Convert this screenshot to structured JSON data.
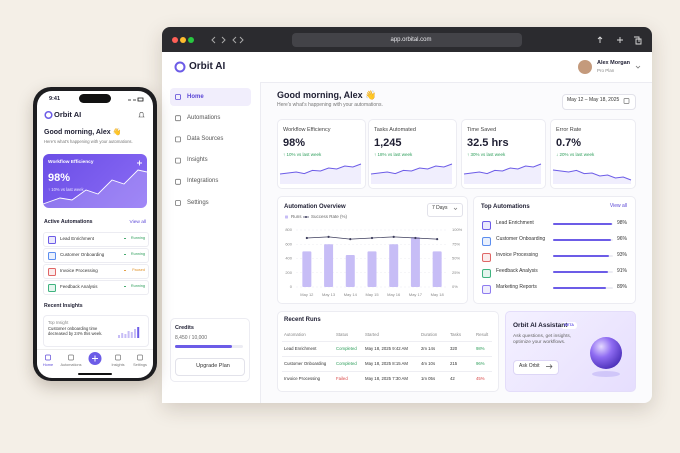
{
  "browser": {
    "url": "app.orbital.com"
  },
  "app": {
    "brand": "Orbit AI",
    "user": {
      "name": "Alex Morgan",
      "plan": "Pro Plan"
    },
    "nav": [
      "Home",
      "Automations",
      "Data Sources",
      "Insights",
      "Integrations",
      "Settings"
    ],
    "credits": {
      "title": "Credits",
      "label": "8,450 / 10,000",
      "used": 8450,
      "total": 10000,
      "button": "Upgrade Plan"
    },
    "greeting": "Good morning, Alex 👋",
    "subtitle": "Here's what's happening with your automations.",
    "date_range": "May 12 – May 18, 2025",
    "kpis": [
      {
        "title": "Workflow Efficiency",
        "value": "98%",
        "delta": "↑ 10% vs last week",
        "color": "#2e9e5b"
      },
      {
        "title": "Tasks Automated",
        "value": "1,245",
        "delta": "↑ 18% vs last week",
        "color": "#2e9e5b"
      },
      {
        "title": "Time Saved",
        "value": "32.5 hrs",
        "delta": "↑ 30% vs last week",
        "color": "#2e9e5b"
      },
      {
        "title": "Error Rate",
        "value": "0.7%",
        "delta": "↓ 20% vs last week",
        "color": "#2e9e5b"
      }
    ],
    "top_automations": {
      "title": "Top Automations",
      "link": "View all",
      "xlim": [
        0,
        100
      ],
      "color": "#6c5ce7",
      "items": [
        {
          "name": "Lead Enrichment",
          "value": 98,
          "label": "98%"
        },
        {
          "name": "Customer Onboarding",
          "value": 96,
          "label": "96%"
        },
        {
          "name": "Invoice Processing",
          "value": 93,
          "label": "93%"
        },
        {
          "name": "Feedback Analysis",
          "value": 91,
          "label": "91%"
        },
        {
          "name": "Marketing Reports",
          "value": 89,
          "label": "89%"
        }
      ]
    },
    "recent_runs": {
      "title": "Recent Runs",
      "columns": [
        "Automation",
        "Status",
        "Started",
        "Duration",
        "Tasks",
        "Result"
      ],
      "rows": [
        {
          "cells": [
            "Lead Enrichment",
            "Completed",
            "May 18, 2025 9:42 AM",
            "2m 14s",
            "320",
            "98%"
          ],
          "color": "#2e9e5b"
        },
        {
          "cells": [
            "Customer Onboarding",
            "Completed",
            "May 18, 2025 8:15 AM",
            "4m 10s",
            "215",
            "96%"
          ],
          "color": "#2e9e5b"
        },
        {
          "cells": [
            "Invoice Processing",
            "Failed",
            "May 18, 2025 7:30 AM",
            "1m 05s",
            "42",
            "45%"
          ],
          "color": "#d94848"
        }
      ]
    },
    "assistant": {
      "title": "Orbit AI Assistant",
      "badge": "BETA",
      "text": "Ask questions, get insights, optimize your workflows.",
      "button": "Ask Orbit"
    }
  },
  "chart_data": {
    "type": "bar",
    "title": "Automation Overview",
    "range": "7 Days",
    "categories": [
      "May 12",
      "May 13",
      "May 14",
      "May 15",
      "May 16",
      "May 17",
      "May 18"
    ],
    "series": [
      {
        "name": "Runs",
        "color": "#c7bdf6",
        "values": [
          500,
          600,
          450,
          500,
          600,
          700,
          500
        ]
      },
      {
        "name": "Success Rate (%)",
        "color": "#3d3d5c",
        "axis": "y2",
        "values": [
          86,
          88,
          84,
          86,
          88,
          86,
          84
        ]
      }
    ],
    "ylim": [
      0,
      800
    ],
    "yticks": [
      0,
      200,
      400,
      600,
      800
    ],
    "y2lim": [
      0,
      100
    ],
    "y2ticks": [
      {
        "value": 0,
        "label": "0%"
      },
      {
        "value": 25,
        "label": "25%"
      },
      {
        "value": 50,
        "label": "50%"
      },
      {
        "value": 75,
        "label": "75%"
      },
      {
        "value": 100,
        "label": "100%"
      }
    ],
    "grid": true
  },
  "phone": {
    "time": "9:41",
    "brand": "Orbit AI",
    "greeting": "Good morning, Alex 👋",
    "subtitle": "Here's what's happening with your automations.",
    "card": {
      "title": "Workflow Efficiency",
      "value": "98%",
      "delta": "↑ 10% vs last week"
    },
    "active": {
      "title": "Active Automations",
      "link": "View all",
      "items": [
        {
          "name": "Lead Enrichment",
          "status": "Running",
          "color": "#2e9e5b"
        },
        {
          "name": "Customer Onboarding",
          "status": "Running",
          "color": "#2e9e5b"
        },
        {
          "name": "Invoice Processing",
          "status": "Paused",
          "color": "#e0932b"
        },
        {
          "name": "Feedback Analysis",
          "status": "Running",
          "color": "#2e9e5b"
        }
      ]
    },
    "insights": {
      "title": "Recent Insights",
      "label": "Top Insight",
      "text": "Customer onboarding time decreased by 24% this week."
    },
    "tabs": [
      "Home",
      "Automations",
      "Insights",
      "Settings"
    ]
  }
}
